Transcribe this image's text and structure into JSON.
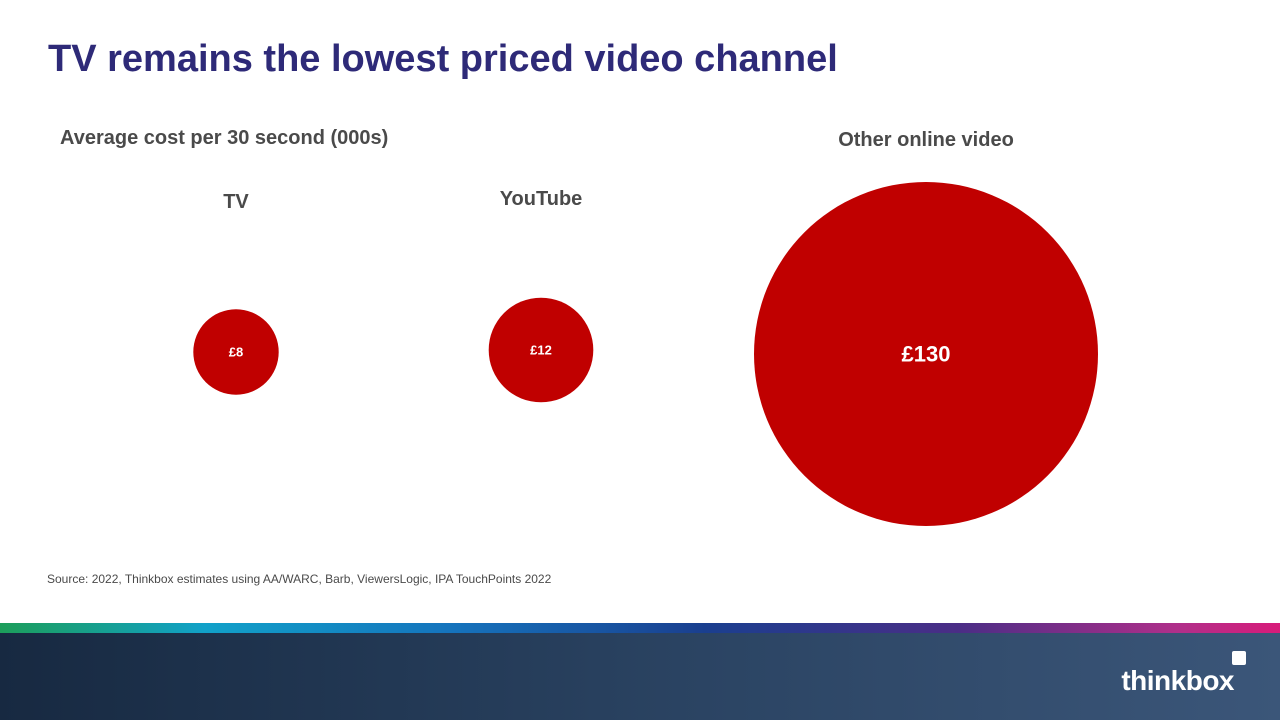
{
  "slide": {
    "title": "TV remains the lowest priced video channel",
    "source": "Source: 2022, Thinkbox estimates using AA/WARC, Barb, ViewersLogic, IPA TouchPoints 2022"
  },
  "brand": {
    "logo_text": "thinkbox"
  },
  "colors": {
    "title": "#2e2a78",
    "bubble": "#c00000",
    "label": "#4a4a4a",
    "footer_dark": "#1c2f48"
  },
  "chart_data": {
    "type": "bubble",
    "title": "Average cost per 30 second (000s)",
    "unit": "£ (000s)",
    "categories": [
      "TV",
      "YouTube",
      "Other online video"
    ],
    "values": [
      8,
      12,
      130
    ],
    "value_labels": [
      "£8",
      "£12",
      "£130"
    ]
  }
}
